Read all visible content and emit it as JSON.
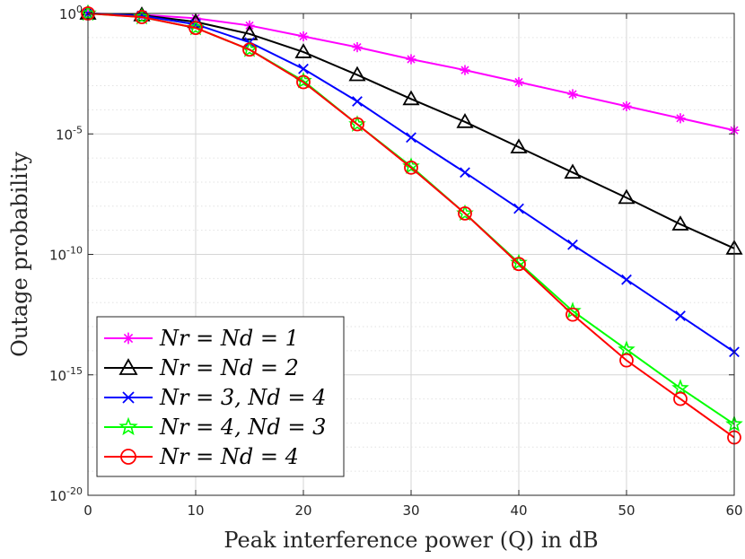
{
  "chart_data": {
    "type": "line",
    "xlabel": "Peak interference power (Q) in dB",
    "ylabel": "Outage probability",
    "xlim": [
      0,
      60
    ],
    "ylim_log10": [
      -20,
      0
    ],
    "y_scale": "log",
    "grid": true,
    "legend_position": "bottom-left",
    "x_ticks": [
      0,
      10,
      20,
      30,
      40,
      50,
      60
    ],
    "y_ticks": [
      {
        "base": "10",
        "exp": "0"
      },
      {
        "base": "10",
        "exp": "-5"
      },
      {
        "base": "10",
        "exp": "-10"
      },
      {
        "base": "10",
        "exp": "-15"
      },
      {
        "base": "10",
        "exp": "-20"
      }
    ],
    "x": [
      0,
      5,
      10,
      15,
      20,
      25,
      30,
      35,
      40,
      45,
      50,
      55,
      60
    ],
    "series": [
      {
        "name": "N_r = N_d = 1",
        "legend": "Nr = Nd = 1",
        "color": "#ff00ff",
        "marker": "asterisk",
        "log10_values": [
          0,
          -0.05,
          -0.2,
          -0.5,
          -0.95,
          -1.4,
          -1.9,
          -2.35,
          -2.85,
          -3.35,
          -3.85,
          -4.35,
          -4.85
        ]
      },
      {
        "name": "N_r = N_d = 2",
        "legend": "Nr = Nd = 2",
        "color": "#000000",
        "marker": "triangle",
        "log10_values": [
          0,
          -0.07,
          -0.35,
          -0.85,
          -1.6,
          -2.55,
          -3.55,
          -4.5,
          -5.55,
          -6.6,
          -7.65,
          -8.75,
          -9.75
        ]
      },
      {
        "name": "N_r = 3, N_d = 4",
        "legend": "Nr = 3, Nd = 4",
        "color": "#0000ff",
        "marker": "x",
        "log10_values": [
          0,
          -0.1,
          -0.45,
          -1.2,
          -2.3,
          -3.65,
          -5.15,
          -6.6,
          -8.1,
          -9.6,
          -11.05,
          -12.55,
          -14.05
        ]
      },
      {
        "name": "N_r = 4, N_d = 3",
        "legend": "Nr = 4, Nd = 3",
        "color": "#00ff00",
        "marker": "star",
        "log10_values": [
          0,
          -0.15,
          -0.6,
          -1.5,
          -2.8,
          -4.6,
          -6.35,
          -8.3,
          -10.35,
          -12.35,
          -13.95,
          -15.55,
          -17.05
        ]
      },
      {
        "name": "N_r = N_d = 4",
        "legend": "Nr = Nd = 4",
        "color": "#ff0000",
        "marker": "circle",
        "log10_values": [
          0,
          -0.15,
          -0.6,
          -1.5,
          -2.85,
          -4.6,
          -6.4,
          -8.3,
          -10.4,
          -12.5,
          -14.4,
          -16.0,
          -17.6
        ]
      }
    ]
  }
}
